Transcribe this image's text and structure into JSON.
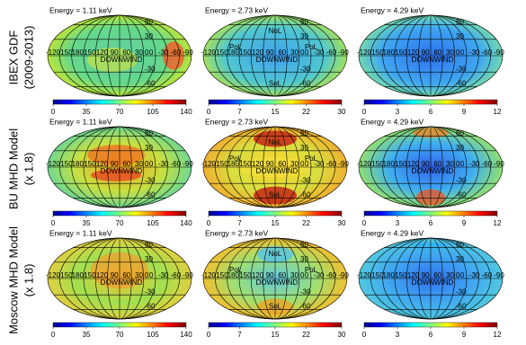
{
  "figure": {
    "row_labels": [
      [
        "IBEX GDF",
        "(2009-2013)"
      ],
      [
        "BU MHD Model",
        "(x 1.8)"
      ],
      [
        "Moscow MHD Model",
        "(x 1.8)"
      ]
    ],
    "lat_labels": [
      60,
      30,
      0,
      -30,
      -60
    ],
    "lon_labels": [
      -120,
      -150,
      180,
      150,
      120,
      90,
      60,
      30,
      0,
      -30,
      -60,
      -90
    ],
    "downwind": "DOWNWIND"
  },
  "chart_data": [
    {
      "type": "map",
      "title": "Energy =   1.11 keV",
      "colormap": "jet",
      "clim": [
        0,
        140
      ],
      "cticks": [
        0,
        35,
        70,
        105,
        140
      ]
    },
    {
      "type": "map",
      "title": "Energy =   2.73 keV",
      "colormap": "jet",
      "clim": [
        0,
        30
      ],
      "cticks": [
        0,
        7,
        15,
        22,
        30
      ],
      "regions": [
        "NoL",
        "SoL",
        "PoL",
        "PoL"
      ]
    },
    {
      "type": "map",
      "title": "Energy =   4.29 keV",
      "colormap": "jet",
      "clim": [
        0,
        12
      ],
      "cticks": [
        0,
        3,
        6,
        9,
        12
      ]
    },
    {
      "type": "map",
      "title": "Energy =   1.11 keV",
      "colormap": "jet",
      "clim": [
        0,
        140
      ],
      "cticks": [
        0,
        35,
        70,
        105,
        140
      ]
    },
    {
      "type": "map",
      "title": "Energy =   2.73 keV",
      "colormap": "jet",
      "clim": [
        0,
        30
      ],
      "cticks": [
        0,
        7,
        15,
        22,
        30
      ],
      "regions": [
        "NoL",
        "SoL",
        "PoL",
        "PoL"
      ]
    },
    {
      "type": "map",
      "title": "Energy =   4.29 keV",
      "colormap": "jet",
      "clim": [
        0,
        12
      ],
      "cticks": [
        0,
        3,
        6,
        9,
        12
      ]
    },
    {
      "type": "map",
      "title": "Energy =   1.11 keV",
      "colormap": "jet",
      "clim": [
        0,
        140
      ],
      "cticks": [
        0,
        35,
        70,
        105,
        140
      ]
    },
    {
      "type": "map",
      "title": "Energy =   2.73 keV",
      "colormap": "jet",
      "clim": [
        0,
        30
      ],
      "cticks": [
        0,
        7,
        15,
        22,
        30
      ],
      "regions": [
        "NoL",
        "SoL",
        "PoL",
        "PoL"
      ]
    },
    {
      "type": "map",
      "title": "Energy =   4.29 keV",
      "colormap": "jet",
      "clim": [
        0,
        12
      ],
      "cticks": [
        0,
        3,
        6,
        9,
        12
      ]
    }
  ]
}
